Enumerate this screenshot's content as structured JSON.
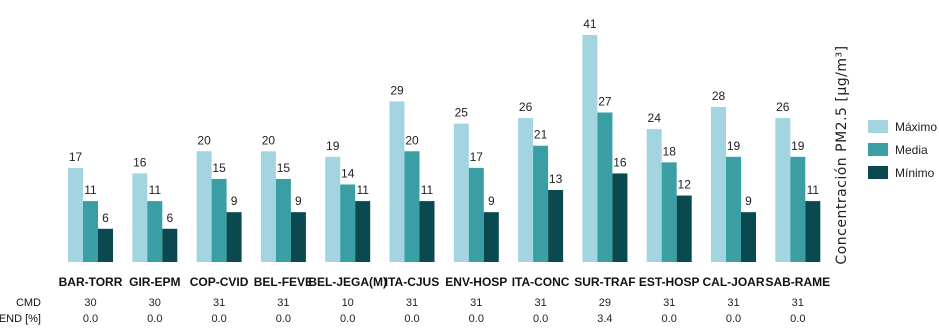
{
  "chart_data": {
    "type": "bar",
    "ylabel": "Concentración PM2.5 [μg/m³]",
    "categories": [
      "BAR-TORR",
      "GIR-EPM",
      "COP-CVID",
      "BEL-FEVE",
      "BEL-JEGA(M)",
      "ITA-CJUS",
      "ENV-HOSP",
      "ITA-CONC",
      "SUR-TRAF",
      "EST-HOSP",
      "CAL-JOAR",
      "SAB-RAME"
    ],
    "series": [
      {
        "name": "Máximo",
        "color": "#a3d5e0",
        "values": [
          17,
          16,
          20,
          20,
          19,
          29,
          25,
          26,
          41,
          24,
          28,
          26
        ]
      },
      {
        "name": "Media",
        "color": "#3a9ea5",
        "values": [
          11,
          11,
          15,
          15,
          14,
          20,
          17,
          21,
          27,
          18,
          19,
          19
        ]
      },
      {
        "name": "Mínimo",
        "color": "#0b4950",
        "values": [
          6,
          6,
          9,
          9,
          11,
          11,
          9,
          13,
          16,
          12,
          9,
          11
        ]
      }
    ],
    "ylim": [
      0,
      41
    ],
    "legend_position": "right",
    "grid": false,
    "rows": [
      {
        "label": "CMD",
        "values": [
          "30",
          "30",
          "31",
          "31",
          "10",
          "31",
          "31",
          "31",
          "29",
          "31",
          "31",
          "31"
        ]
      },
      {
        "label": "END [%]",
        "values": [
          "0.0",
          "0.0",
          "0.0",
          "0.0",
          "0.0",
          "0.0",
          "0.0",
          "0.0",
          "3.4",
          "0.0",
          "0.0",
          "0.0"
        ]
      }
    ]
  }
}
